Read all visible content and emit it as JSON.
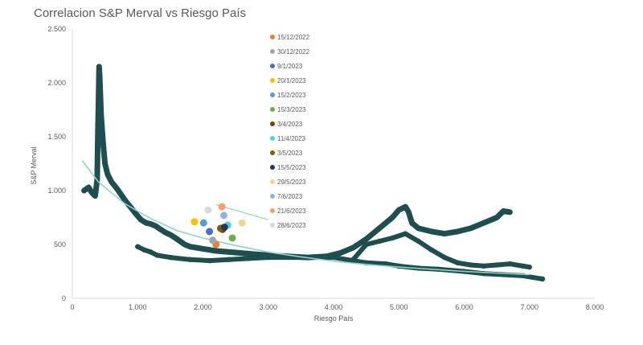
{
  "chart_data": {
    "type": "scatter",
    "title": "Correlacion S&P Merval vs Riesgo País",
    "xlabel": "Riesgo País",
    "ylabel": "S&P Merval",
    "xlim": [
      0,
      8000
    ],
    "ylim": [
      0,
      2500
    ],
    "x_ticks": [
      0,
      1000,
      2000,
      3000,
      4000,
      5000,
      6000,
      7000,
      8000
    ],
    "x_tick_labels": [
      "0",
      "1.000",
      "2.000",
      "3.000",
      "4.000",
      "5.000",
      "6.000",
      "7.000",
      "8.000"
    ],
    "y_ticks": [
      0,
      500,
      1000,
      1500,
      2000,
      2500
    ],
    "y_tick_labels": [
      "0",
      "500",
      "1.000",
      "1.500",
      "2.000",
      "2.500"
    ],
    "grid": false,
    "legend_placement": "center-top",
    "history_color": "#1f4e4e",
    "trendline_color": "#8fd3cc",
    "history_path": [
      [
        180,
        1000
      ],
      [
        250,
        1030
      ],
      [
        300,
        980
      ],
      [
        350,
        950
      ],
      [
        380,
        1100
      ],
      [
        390,
        1500
      ],
      [
        400,
        1800
      ],
      [
        410,
        2150
      ],
      [
        420,
        2050
      ],
      [
        440,
        1700
      ],
      [
        470,
        1450
      ],
      [
        500,
        1250
      ],
      [
        540,
        1150
      ],
      [
        600,
        1080
      ],
      [
        680,
        1020
      ],
      [
        750,
        960
      ],
      [
        820,
        900
      ],
      [
        900,
        840
      ],
      [
        980,
        780
      ],
      [
        1050,
        730
      ],
      [
        1130,
        700
      ],
      [
        1200,
        690
      ],
      [
        1280,
        670
      ],
      [
        1350,
        640
      ],
      [
        1430,
        610
      ],
      [
        1500,
        590
      ],
      [
        1580,
        560
      ],
      [
        1650,
        530
      ],
      [
        1720,
        500
      ],
      [
        1800,
        480
      ],
      [
        1900,
        470
      ],
      [
        2000,
        460
      ],
      [
        2100,
        450
      ],
      [
        2200,
        440
      ],
      [
        2400,
        430
      ],
      [
        2600,
        420
      ],
      [
        2800,
        410
      ],
      [
        3000,
        400
      ],
      [
        3300,
        390
      ],
      [
        3600,
        380
      ],
      [
        3900,
        390
      ],
      [
        4100,
        420
      ],
      [
        4300,
        470
      ],
      [
        4500,
        550
      ],
      [
        4700,
        650
      ],
      [
        4800,
        700
      ],
      [
        4900,
        750
      ],
      [
        5000,
        820
      ],
      [
        5100,
        850
      ],
      [
        5150,
        800
      ],
      [
        5200,
        700
      ],
      [
        5300,
        650
      ],
      [
        5500,
        620
      ],
      [
        5700,
        600
      ],
      [
        5900,
        620
      ],
      [
        6100,
        650
      ],
      [
        6300,
        700
      ],
      [
        6500,
        750
      ],
      [
        6600,
        810
      ],
      [
        6700,
        800
      ]
    ],
    "history_low_path": [
      [
        1000,
        480
      ],
      [
        1100,
        450
      ],
      [
        1200,
        430
      ],
      [
        1300,
        400
      ],
      [
        1500,
        380
      ],
      [
        1800,
        360
      ],
      [
        2100,
        350
      ],
      [
        2400,
        360
      ],
      [
        2700,
        370
      ],
      [
        3000,
        380
      ],
      [
        4000,
        380
      ],
      [
        4300,
        350
      ],
      [
        4500,
        330
      ],
      [
        4800,
        320
      ],
      [
        5000,
        300
      ],
      [
        5300,
        280
      ],
      [
        5600,
        270
      ],
      [
        6000,
        250
      ],
      [
        6300,
        230
      ],
      [
        6600,
        220
      ],
      [
        6900,
        210
      ],
      [
        7200,
        180
      ]
    ],
    "history_right_path": [
      [
        4300,
        360
      ],
      [
        4500,
        500
      ],
      [
        4700,
        530
      ],
      [
        4900,
        560
      ],
      [
        5100,
        600
      ],
      [
        5300,
        530
      ],
      [
        5500,
        450
      ],
      [
        5700,
        380
      ],
      [
        5900,
        330
      ],
      [
        6100,
        310
      ],
      [
        6300,
        300
      ],
      [
        6500,
        310
      ],
      [
        6700,
        320
      ],
      [
        6900,
        300
      ],
      [
        7000,
        290
      ]
    ],
    "trendline": [
      [
        150,
        1280
      ],
      [
        400,
        1080
      ],
      [
        800,
        880
      ],
      [
        1200,
        740
      ],
      [
        1600,
        630
      ],
      [
        2000,
        560
      ],
      [
        2500,
        490
      ],
      [
        3000,
        430
      ],
      [
        3500,
        385
      ],
      [
        4000,
        345
      ],
      [
        4500,
        315
      ],
      [
        5000,
        290
      ],
      [
        5500,
        270
      ],
      [
        6000,
        250
      ],
      [
        6500,
        235
      ],
      [
        7000,
        220
      ]
    ],
    "trendline_short": [
      [
        2200,
        870
      ],
      [
        3000,
        730
      ]
    ],
    "recent_points": [
      {
        "date": "15/12/2022",
        "color": "#ed7d31",
        "x": 2200,
        "y": 500
      },
      {
        "date": "30/12/2022",
        "color": "#a5a5a5",
        "x": 2150,
        "y": 540
      },
      {
        "date": "9/1/2023",
        "color": "#4472c4",
        "x": 2100,
        "y": 620
      },
      {
        "date": "20/1/2023",
        "color": "#ffc000",
        "x": 1870,
        "y": 710
      },
      {
        "date": "15/2/2023",
        "color": "#5b9bd5",
        "x": 2010,
        "y": 700
      },
      {
        "date": "15/3/2023",
        "color": "#70ad47",
        "x": 2450,
        "y": 560
      },
      {
        "date": "3/4/2023",
        "color": "#7f3b08",
        "x": 2300,
        "y": 640
      },
      {
        "date": "11/4/2023",
        "color": "#4dd0e1",
        "x": 2380,
        "y": 680
      },
      {
        "date": "3/5/2023",
        "color": "#806000",
        "x": 2270,
        "y": 650
      },
      {
        "date": "15/5/2023",
        "color": "#1f3864",
        "x": 2330,
        "y": 660
      },
      {
        "date": "29/5/2023",
        "color": "#f4d58d",
        "x": 2600,
        "y": 700
      },
      {
        "date": "7/6/2023",
        "color": "#8fb4e3",
        "x": 2320,
        "y": 770
      },
      {
        "date": "21/6/2023",
        "color": "#f4a06a",
        "x": 2290,
        "y": 850
      },
      {
        "date": "28/6/2023",
        "color": "#d9d9d9",
        "x": 2080,
        "y": 820
      }
    ]
  }
}
